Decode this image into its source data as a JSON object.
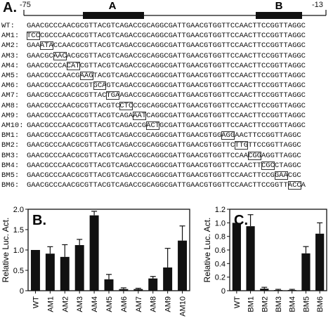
{
  "panel_a": {
    "letter": "A.",
    "coord_left": "-75",
    "coord_right": "-13",
    "element_a_label": "A",
    "element_b_label": "B",
    "rows": [
      {
        "label": "WT:",
        "seq": "GAACGCCCAACGCGTTACGTCAGACCGCAGGCGATTGAACGTGGTTCCAACTTCCGGTTAGGC",
        "box": null
      },
      {
        "label": "AM1:",
        "seq": "TCCCGCCCAACGCGTTACGTCAGACCGCAGGCGATTGAACGTGGTTCCAACTTCCGGTTAGGC",
        "box": [
          0,
          3
        ]
      },
      {
        "label": "AM2:",
        "seq": "GAAATACCAACGCGTTACGTCAGACCGCAGGCGATTGAACGTGGTTCCAACTTCCGGTTAGGC",
        "box": [
          3,
          6
        ]
      },
      {
        "label": "AM3:",
        "seq": "GAACGCAACACGCGTTACGTCAGACCGCAGGCGATTGAACGTGGTTCCAACTTCCGGTTAGGC",
        "box": [
          6,
          9
        ]
      },
      {
        "label": "AM4:",
        "seq": "GAACGCCCACATCGTTACGTCAGACCGCAGGCGATTGAACGTGGTTCCAACTTCCGGTTAGGC",
        "box": [
          9,
          12
        ]
      },
      {
        "label": "AM5:",
        "seq": "GAACGCCCAACGAAGTACGTCAGACCGCAGGCGATTGAACGTGGTTCCAACTTCCGGTTAGGC",
        "box": [
          12,
          15
        ]
      },
      {
        "label": "AM6:",
        "seq": "GAACGCCCAACGCGTGCAGTCAGACCGCAGGCGATTGAACGTGGTTCCAACTTCCGGTTAGGC",
        "box": [
          15,
          18
        ]
      },
      {
        "label": "AM7:",
        "seq": "GAACGCCCAACGCGTTACTGAAGACCGCAGGCGATTGAACGTGGTTCCAACTTCCGGTTAGGC",
        "box": [
          18,
          21
        ]
      },
      {
        "label": "AM8:",
        "seq": "GAACGCCCAACGCGTTACGTCCTCCCGCAGGCGATTGAACGTGGTTCCAACTTCCGGTTAGGC",
        "box": [
          21,
          24
        ]
      },
      {
        "label": "AM9:",
        "seq": "GAACGCCCAACGCGTTACGTCAGAAATCAGGCGATTGAACGTGGTTCCAACTTCCGGTTAGGC",
        "box": [
          24,
          27
        ]
      },
      {
        "label": "AM10:",
        "seq": "GAACGCCCAACGCGTTACGTCAGACCGACTGCGATTGAACGTGGTTCCAACTTCCGGTTAGGC",
        "box": [
          27,
          30
        ]
      },
      {
        "label": "BM1:",
        "seq": "GAACGCCCAACGCGTTACGTCAGACCGCAGGCGATTGAACGTGGAGGAACTTCCGGTTAGGC",
        "box": [
          44,
          47
        ]
      },
      {
        "label": "BM2:",
        "seq": "GAACGCCCAACGCGTTACGTCAGACCGCAGGCGATTGAACGTGGTTCTTGTTCCGGTTAGGC",
        "box": [
          47,
          50
        ]
      },
      {
        "label": "BM3:",
        "seq": "GAACGCCCAACGCGTTACGTCAGACCGCAGGCGATTGAACGTGGTTCCAACGGAGGTTAGGC",
        "box": [
          50,
          53
        ]
      },
      {
        "label": "BM4:",
        "seq": "GAACGCCCAACGCGTTACGTCAGACCGCAGGCGATTGAACGTGGTTCCAACTTCGCCTAGGC",
        "box": [
          53,
          56
        ]
      },
      {
        "label": "BM5:",
        "seq": "GAACGCCCAACGCGTTACGTCAGACCGCAGGCGATTGAACGTGGTTCCAACTTCCGGAACGC",
        "box": [
          56,
          59
        ]
      },
      {
        "label": "BM6:",
        "seq": "GAACGCCCAACGCGTTACGTCAGACCGCAGGCGATTGAACGTGGTTCCAACTTCCGGTTACCA",
        "box": [
          59,
          62
        ]
      }
    ]
  },
  "chart_data": [
    {
      "type": "bar",
      "panel": "B.",
      "ylabel": "Relative Luc. Act.",
      "ylim": [
        0,
        2.0
      ],
      "yticks": [
        "0",
        "0.5",
        "1.0",
        "1.5",
        "2.0"
      ],
      "categories": [
        "WT",
        "AM1",
        "AM2",
        "AM3",
        "AM4",
        "AM5",
        "AM6",
        "AM7",
        "AM8",
        "AM9",
        "AM10"
      ],
      "values": [
        1.0,
        0.91,
        0.83,
        1.12,
        1.85,
        0.28,
        0.04,
        0.04,
        0.3,
        0.57,
        1.23
      ],
      "errors": [
        0.0,
        0.17,
        0.3,
        0.14,
        0.1,
        0.12,
        0.03,
        0.02,
        0.05,
        0.47,
        0.36
      ],
      "bar_color": "#111111"
    },
    {
      "type": "bar",
      "panel": "C.",
      "ylabel": "Relative Luc. Act.",
      "ylim": [
        0,
        1.2
      ],
      "yticks": [
        "0",
        "0.2",
        "0.4",
        "0.6",
        "0.8",
        "1.0",
        "1.2"
      ],
      "categories": [
        "WT",
        "BM1",
        "BM2",
        "BM3",
        "BM4",
        "BM5",
        "BM6"
      ],
      "values": [
        1.0,
        0.95,
        0.03,
        0.01,
        0.01,
        0.55,
        0.84
      ],
      "errors": [
        0.0,
        0.17,
        0.02,
        0.01,
        0.01,
        0.1,
        0.16
      ],
      "bar_color": "#111111"
    }
  ]
}
